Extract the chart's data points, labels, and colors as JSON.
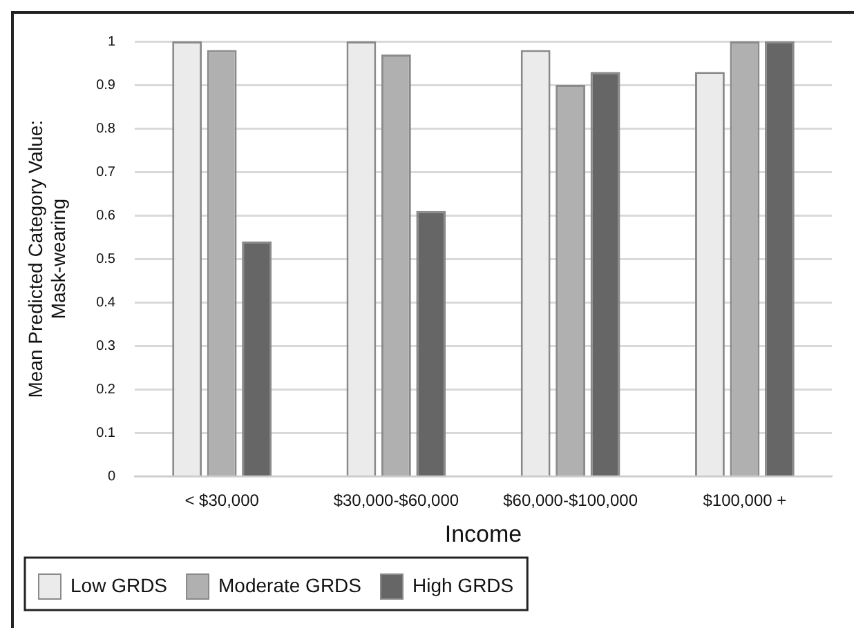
{
  "chart_data": {
    "type": "bar",
    "xlabel": "Income",
    "ylabel": "Mean Predicted Category Value: Mask-wearing",
    "categories": [
      "< $30,000",
      "$30,000-$60,000",
      "$60,000-$100,000",
      "$100,000 +"
    ],
    "series": [
      {
        "name": "Low GRDS",
        "color": "#ebebeb",
        "values": [
          1,
          1,
          0.98,
          0.93
        ]
      },
      {
        "name": "Moderate GRDS",
        "color": "#b0b0b0",
        "values": [
          0.98,
          0.97,
          0.9,
          1
        ]
      },
      {
        "name": "High GRDS",
        "color": "#666666",
        "values": [
          0.54,
          0.61,
          0.93,
          1
        ]
      }
    ],
    "ylim": [
      0,
      1
    ],
    "yticks": [
      0,
      0.1,
      0.2,
      0.3,
      0.4,
      0.5,
      0.6,
      0.7,
      0.8,
      0.9,
      1
    ],
    "grid": "y",
    "legend": "bottom left"
  }
}
